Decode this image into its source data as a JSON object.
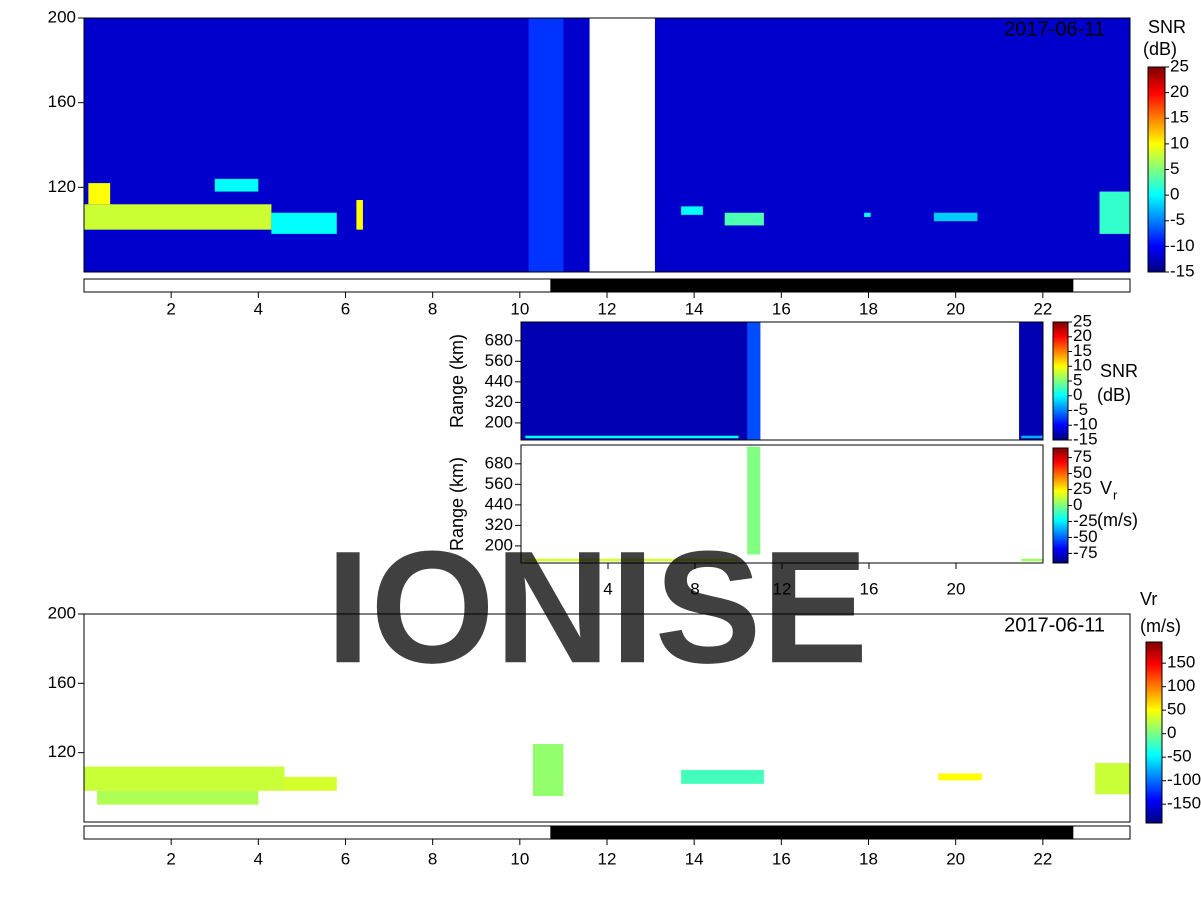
{
  "watermark": "IONISE",
  "chart_data": [
    {
      "type": "heatmap",
      "date_label": "2017-06-11",
      "colormap": "jet",
      "colorbar_title": [
        "SNR",
        "(dB)"
      ],
      "clim": [
        -15,
        25
      ],
      "cticks": [
        25,
        20,
        15,
        10,
        5,
        0,
        -5,
        -10,
        -15
      ],
      "xlim": [
        0,
        24
      ],
      "xticks": [
        2,
        4,
        6,
        8,
        10,
        12,
        14,
        16,
        18,
        20,
        22
      ],
      "ylim": [
        80,
        200
      ],
      "yticks": [
        120,
        160,
        200
      ],
      "night": [
        10.7,
        22.7
      ],
      "cells": [
        {
          "x": [
            0,
            11.6
          ],
          "y": [
            80,
            200
          ],
          "value": -12
        },
        {
          "x": [
            13.1,
            24
          ],
          "y": [
            80,
            200
          ],
          "value": -12
        },
        {
          "x": [
            10.2,
            11.0
          ],
          "y": [
            80,
            200
          ],
          "value": -8
        },
        {
          "x": [
            0,
            4.3
          ],
          "y": [
            100,
            112
          ],
          "value": 8
        },
        {
          "x": [
            4.3,
            5.8
          ],
          "y": [
            98,
            108
          ],
          "value": 0
        },
        {
          "x": [
            0.1,
            0.6
          ],
          "y": [
            112,
            122
          ],
          "value": 10
        },
        {
          "x": [
            3.0,
            4.0
          ],
          "y": [
            118,
            124
          ],
          "value": 0
        },
        {
          "x": [
            6.25,
            6.4
          ],
          "y": [
            100,
            114
          ],
          "value": 10
        },
        {
          "x": [
            13.7,
            14.2
          ],
          "y": [
            107,
            111
          ],
          "value": 0
        },
        {
          "x": [
            14.7,
            15.6
          ],
          "y": [
            102,
            108
          ],
          "value": 3
        },
        {
          "x": [
            17.9,
            18.05
          ],
          "y": [
            106,
            108
          ],
          "value": 0
        },
        {
          "x": [
            19.5,
            20.5
          ],
          "y": [
            104,
            108
          ],
          "value": -2
        },
        {
          "x": [
            23.3,
            24
          ],
          "y": [
            98,
            118
          ],
          "value": 2
        }
      ]
    },
    {
      "type": "heatmap",
      "ylabel": "Range (km)",
      "colormap": "jet",
      "colorbar_title": [
        "SNR",
        "(dB)"
      ],
      "clim": [
        -15,
        25
      ],
      "cticks": [
        25,
        20,
        15,
        10,
        5,
        0,
        -5,
        -10,
        -15
      ],
      "xlim": [
        0,
        24
      ],
      "ylim": [
        100,
        790
      ],
      "yticks": [
        200,
        320,
        440,
        560,
        680
      ],
      "cells": [
        {
          "x": [
            0,
            11
          ],
          "y": [
            100,
            790
          ],
          "value": -13
        },
        {
          "x": [
            22.9,
            24
          ],
          "y": [
            100,
            790
          ],
          "value": -13
        },
        {
          "x": [
            10.4,
            11
          ],
          "y": [
            100,
            790
          ],
          "value": -7
        },
        {
          "x": [
            0.2,
            10
          ],
          "y": [
            110,
            125
          ],
          "value": 0
        },
        {
          "x": [
            23,
            24
          ],
          "y": [
            110,
            125
          ],
          "value": -3
        }
      ]
    },
    {
      "type": "heatmap",
      "ylabel": "Range (km)",
      "colormap": "jet",
      "colorbar_title": [
        "V",
        "(m/s)"
      ],
      "colorbar_subscript": "r",
      "clim": [
        -90,
        90
      ],
      "cticks": [
        75,
        50,
        25,
        0,
        -25,
        -50,
        -75
      ],
      "xlim": [
        0,
        24
      ],
      "xticks": [
        4,
        8,
        12,
        16,
        20
      ],
      "ylim": [
        100,
        790
      ],
      "yticks": [
        200,
        320,
        440,
        560,
        680
      ],
      "cells": [
        {
          "x": [
            0.2,
            10
          ],
          "y": [
            110,
            125
          ],
          "value": 15
        },
        {
          "x": [
            10.4,
            11
          ],
          "y": [
            150,
            780
          ],
          "value": 0
        },
        {
          "x": [
            23,
            24
          ],
          "y": [
            110,
            125
          ],
          "value": 5
        }
      ]
    },
    {
      "type": "heatmap",
      "date_label": "2017-06-11",
      "colormap": "jet",
      "colorbar_title": [
        "Vr",
        "(m/s)"
      ],
      "clim": [
        -190,
        195
      ],
      "cticks": [
        150,
        100,
        50,
        0,
        -50,
        -100,
        -150
      ],
      "xlim": [
        0,
        24
      ],
      "xticks": [
        2,
        4,
        6,
        8,
        10,
        12,
        14,
        16,
        18,
        20,
        22
      ],
      "ylim": [
        80,
        200
      ],
      "yticks": [
        120,
        160,
        200
      ],
      "night": [
        10.7,
        22.7
      ],
      "cells": [
        {
          "x": [
            0,
            4.6
          ],
          "y": [
            98,
            112
          ],
          "value": 30
        },
        {
          "x": [
            4.6,
            5.8
          ],
          "y": [
            98,
            106
          ],
          "value": 35
        },
        {
          "x": [
            0.3,
            4
          ],
          "y": [
            90,
            98
          ],
          "value": 20
        },
        {
          "x": [
            10.3,
            11
          ],
          "y": [
            95,
            125
          ],
          "value": 10
        },
        {
          "x": [
            13.7,
            15.6
          ],
          "y": [
            102,
            110
          ],
          "value": -20
        },
        {
          "x": [
            19.6,
            20.6
          ],
          "y": [
            104,
            108
          ],
          "value": 50
        },
        {
          "x": [
            23.2,
            24
          ],
          "y": [
            96,
            114
          ],
          "value": 30
        }
      ]
    }
  ]
}
